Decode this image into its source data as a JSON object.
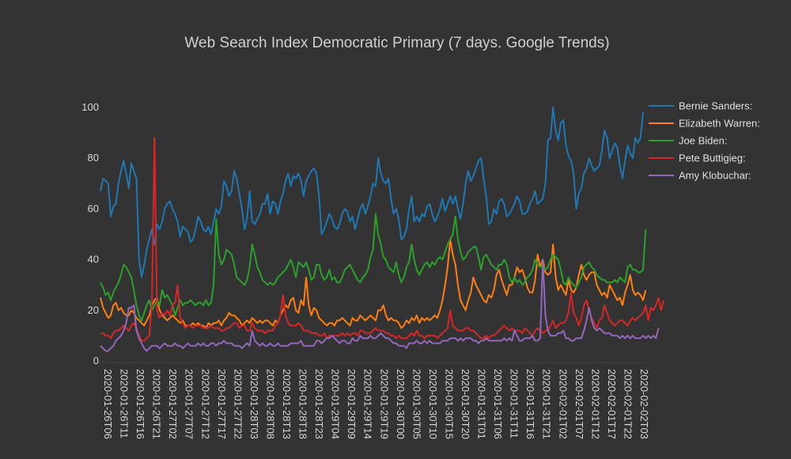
{
  "chart_data": {
    "type": "line",
    "title": "Web Search Index Democratic Primary (7 days. Google Trends)",
    "xlabel": "",
    "ylabel": "",
    "ylim": [
      0,
      100
    ],
    "yticks": [
      0,
      20,
      40,
      60,
      80,
      100
    ],
    "grid": false,
    "legend_position": "top-right",
    "x_tick_labels": [
      "2020-01-26T06",
      "2020-01-26T11",
      "2020-01-26T16",
      "2020-01-26T21",
      "2020-01-27T02",
      "2020-01-27T07",
      "2020-01-27T12",
      "2020-01-27T17",
      "2020-01-27T22",
      "2020-01-28T03",
      "2020-01-28T08",
      "2020-01-28T13",
      "2020-01-28T18",
      "2020-01-28T23",
      "2020-01-29T04",
      "2020-01-29T09",
      "2020-01-29T14",
      "2020-01-29T19",
      "2020-01-30T00",
      "2020-01-30T05",
      "2020-01-30T10",
      "2020-01-30T15",
      "2020-01-30T20",
      "2020-01-31T01",
      "2020-01-31T06",
      "2020-01-31T11",
      "2020-01-31T16",
      "2020-01-31T21",
      "2020-02-01T02",
      "2020-02-01T07",
      "2020-02-01T12",
      "2020-02-01T17",
      "2020-02-01T22",
      "2020-02-02T03"
    ],
    "series": [
      {
        "name": "Bernie Sanders:",
        "color": "#1f77b4",
        "values": [
          67,
          72,
          71,
          70,
          57,
          61,
          62,
          70,
          75,
          79,
          74,
          68,
          78,
          75,
          72,
          40,
          33,
          38,
          44,
          48,
          52,
          46,
          54,
          52,
          55,
          60,
          62,
          63,
          60,
          58,
          55,
          49,
          53,
          52,
          51,
          47,
          48,
          52,
          57,
          55,
          52,
          51,
          53,
          50,
          55,
          60,
          58,
          61,
          71,
          69,
          65,
          67,
          75,
          72,
          66,
          60,
          52,
          56,
          67,
          55,
          54,
          56,
          58,
          62,
          62,
          66,
          58,
          63,
          62,
          58,
          63,
          66,
          71,
          74,
          69,
          73,
          72,
          74,
          71,
          65,
          71,
          73,
          75,
          76,
          74,
          65,
          50,
          52,
          55,
          58,
          56,
          53,
          52,
          54,
          58,
          60,
          59,
          55,
          57,
          52,
          56,
          60,
          62,
          58,
          61,
          65,
          70,
          69,
          80,
          74,
          71,
          70,
          72,
          64,
          58,
          60,
          56,
          48,
          49,
          52,
          60,
          65,
          55,
          57,
          55,
          58,
          57,
          61,
          62,
          58,
          55,
          57,
          60,
          64,
          59,
          62,
          65,
          62,
          65,
          60,
          56,
          62,
          70,
          75,
          71,
          73,
          76,
          79,
          80,
          72,
          65,
          54,
          55,
          60,
          58,
          63,
          64,
          62,
          57,
          58,
          60,
          62,
          65,
          63,
          58,
          58,
          59,
          62,
          64,
          67,
          62,
          63,
          64,
          70,
          87,
          88,
          100,
          91,
          87,
          94,
          95,
          85,
          81,
          79,
          74,
          60,
          66,
          68,
          74,
          76,
          80,
          77,
          75,
          76,
          77,
          83,
          91,
          88,
          80,
          83,
          86,
          84,
          77,
          72,
          79,
          85,
          82,
          80,
          88,
          86,
          88,
          98
        ]
      },
      {
        "name": "Elizabeth Warren:",
        "color": "#ff7f0e",
        "values": [
          25,
          21,
          19,
          17,
          18,
          22,
          23,
          20,
          21,
          19,
          18,
          18,
          20,
          19,
          17,
          16,
          15,
          14,
          16,
          18,
          22,
          24,
          25,
          20,
          18,
          17,
          16,
          17,
          18,
          17,
          16,
          15,
          16,
          14,
          14,
          14,
          15,
          14,
          15,
          14,
          14,
          13,
          15,
          14,
          15,
          15,
          16,
          14,
          16,
          17,
          19,
          18,
          18,
          17,
          16,
          14,
          15,
          16,
          15,
          17,
          16,
          15,
          16,
          15,
          16,
          16,
          15,
          14,
          16,
          15,
          18,
          20,
          22,
          21,
          24,
          25,
          20,
          19,
          24,
          22,
          33,
          22,
          18,
          21,
          20,
          17,
          16,
          15,
          14,
          15,
          15,
          14,
          16,
          16,
          17,
          16,
          15,
          14,
          17,
          16,
          16,
          18,
          17,
          16,
          17,
          18,
          17,
          16,
          20,
          20,
          22,
          18,
          16,
          17,
          16,
          16,
          15,
          13,
          14,
          16,
          15,
          17,
          16,
          18,
          15,
          17,
          16,
          17,
          16,
          17,
          18,
          17,
          20,
          24,
          30,
          37,
          48,
          42,
          38,
          30,
          24,
          22,
          20,
          24,
          27,
          33,
          30,
          28,
          26,
          24,
          23,
          26,
          25,
          28,
          34,
          36,
          32,
          29,
          26,
          30,
          30,
          33,
          37,
          35,
          36,
          33,
          29,
          27,
          27,
          32,
          42,
          37,
          40,
          35,
          34,
          35,
          46,
          33,
          28,
          30,
          28,
          26,
          32,
          28,
          27,
          29,
          34,
          38,
          34,
          32,
          34,
          35,
          35,
          30,
          28,
          26,
          27,
          25,
          30,
          28,
          26,
          24,
          25,
          22,
          27,
          30,
          34,
          28,
          26,
          27,
          26,
          24,
          28
        ]
      },
      {
        "name": "Joe Biden:",
        "color": "#2ca02c",
        "values": [
          31,
          29,
          26,
          27,
          24,
          27,
          29,
          31,
          34,
          38,
          37,
          35,
          33,
          28,
          22,
          18,
          16,
          19,
          22,
          24,
          20,
          22,
          24,
          22,
          28,
          25,
          26,
          24,
          22,
          18,
          21,
          24,
          22,
          23,
          23,
          24,
          23,
          22,
          23,
          23,
          22,
          24,
          22,
          23,
          30,
          56,
          42,
          38,
          40,
          44,
          43,
          42,
          38,
          33,
          32,
          31,
          30,
          32,
          37,
          46,
          42,
          37,
          35,
          32,
          31,
          30,
          31,
          30,
          31,
          33,
          34,
          35,
          36,
          38,
          40,
          37,
          33,
          39,
          38,
          37,
          39,
          36,
          32,
          33,
          38,
          38,
          34,
          32,
          33,
          36,
          32,
          33,
          31,
          31,
          33,
          36,
          37,
          38,
          36,
          34,
          32,
          31,
          33,
          34,
          36,
          41,
          44,
          58,
          50,
          46,
          41,
          40,
          37,
          36,
          35,
          39,
          34,
          31,
          33,
          37,
          39,
          46,
          40,
          36,
          34,
          36,
          38,
          39,
          37,
          39,
          38,
          40,
          41,
          40,
          43,
          46,
          48,
          50,
          57,
          48,
          43,
          40,
          41,
          43,
          44,
          45,
          45,
          41,
          36,
          41,
          42,
          40,
          38,
          37,
          36,
          38,
          38,
          40,
          38,
          33,
          31,
          33,
          31,
          32,
          30,
          31,
          33,
          34,
          36,
          40,
          38,
          37,
          38,
          36,
          37,
          40,
          42,
          41,
          40,
          36,
          31,
          30,
          33,
          31,
          30,
          29,
          31,
          33,
          37,
          38,
          39,
          37,
          36,
          34,
          33,
          32,
          32,
          31,
          31,
          31,
          32,
          31,
          33,
          32,
          31,
          37,
          38,
          36,
          36,
          35,
          35,
          36,
          52
        ]
      },
      {
        "name": "Pete Buttigieg:",
        "color": "#d62728",
        "values": [
          11,
          11,
          10,
          10,
          9,
          11,
          12,
          12,
          13,
          14,
          13,
          12,
          14,
          15,
          13,
          10,
          8,
          8,
          9,
          10,
          23,
          88,
          20,
          17,
          19,
          18,
          20,
          18,
          22,
          23,
          30,
          17,
          15,
          13,
          14,
          14,
          13,
          14,
          14,
          14,
          13,
          13,
          13,
          14,
          13,
          13,
          13,
          12,
          12,
          13,
          13,
          14,
          15,
          15,
          13,
          14,
          14,
          12,
          12,
          15,
          13,
          12,
          12,
          12,
          11,
          12,
          12,
          12,
          14,
          15,
          18,
          26,
          18,
          15,
          14,
          14,
          14,
          15,
          14,
          12,
          12,
          12,
          11,
          11,
          11,
          10,
          10,
          11,
          9,
          10,
          10,
          10,
          10,
          10,
          11,
          10,
          11,
          10,
          11,
          11,
          10,
          12,
          12,
          11,
          11,
          11,
          12,
          13,
          12,
          12,
          12,
          11,
          11,
          10,
          10,
          9,
          10,
          9,
          9,
          9,
          10,
          11,
          10,
          12,
          10,
          10,
          9,
          10,
          10,
          10,
          10,
          9,
          10,
          11,
          12,
          13,
          20,
          14,
          13,
          12,
          12,
          12,
          13,
          13,
          12,
          12,
          11,
          10,
          9,
          9,
          10,
          9,
          10,
          10,
          11,
          12,
          13,
          14,
          13,
          12,
          13,
          12,
          12,
          12,
          11,
          13,
          12,
          11,
          10,
          12,
          13,
          12,
          11,
          12,
          12,
          14,
          16,
          13,
          14,
          15,
          15,
          16,
          19,
          27,
          19,
          17,
          14,
          17,
          22,
          24,
          20,
          17,
          15,
          13,
          16,
          17,
          22,
          19,
          16,
          15,
          14,
          15,
          16,
          16,
          15,
          14,
          16,
          17,
          16,
          17,
          18,
          19,
          22,
          16,
          21,
          20,
          22,
          25,
          20,
          24
        ]
      },
      {
        "name": "Amy Klobuchar:",
        "color": "#9467bd",
        "values": [
          6,
          5,
          4,
          4,
          5,
          6,
          8,
          9,
          10,
          12,
          15,
          21,
          21,
          22,
          12,
          9,
          7,
          5,
          4,
          5,
          6,
          6,
          6,
          5,
          6,
          7,
          6,
          6,
          6,
          7,
          6,
          6,
          5,
          6,
          7,
          6,
          6,
          6,
          7,
          6,
          7,
          6,
          6,
          7,
          7,
          6,
          7,
          7,
          8,
          7,
          7,
          7,
          6,
          6,
          6,
          5,
          6,
          7,
          6,
          12,
          8,
          7,
          6,
          7,
          6,
          6,
          7,
          6,
          6,
          7,
          6,
          6,
          6,
          6,
          7,
          7,
          7,
          7,
          8,
          6,
          6,
          6,
          6,
          6,
          8,
          8,
          7,
          8,
          9,
          9,
          10,
          9,
          8,
          7,
          8,
          8,
          7,
          7,
          9,
          8,
          8,
          10,
          9,
          9,
          9,
          10,
          9,
          9,
          10,
          11,
          10,
          9,
          9,
          8,
          7,
          7,
          6,
          6,
          6,
          5,
          7,
          7,
          7,
          8,
          7,
          7,
          8,
          7,
          8,
          7,
          7,
          7,
          7,
          8,
          8,
          8,
          9,
          9,
          9,
          8,
          9,
          8,
          9,
          9,
          9,
          8,
          8,
          7,
          8,
          8,
          9,
          8,
          8,
          8,
          8,
          8,
          8,
          9,
          8,
          9,
          8,
          12,
          10,
          8,
          8,
          9,
          9,
          9,
          10,
          8,
          8,
          9,
          40,
          18,
          12,
          10,
          10,
          10,
          11,
          11,
          12,
          9,
          9,
          8,
          8,
          9,
          9,
          9,
          12,
          16,
          21,
          16,
          13,
          12,
          13,
          12,
          11,
          11,
          11,
          10,
          10,
          10,
          9,
          10,
          9,
          10,
          9,
          10,
          9,
          9,
          9,
          10,
          9,
          10,
          9,
          10,
          9,
          13
        ]
      }
    ]
  }
}
